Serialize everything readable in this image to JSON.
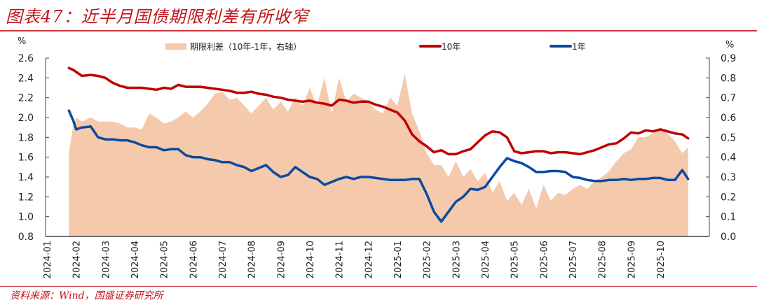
{
  "header": {
    "title": "图表47：近半月国债期限利差有所收窄"
  },
  "footer": {
    "source": "资料来源：Wind，国盛证券研究所"
  },
  "chart_data": {
    "type": "line",
    "title": "图表47：近半月国债期限利差有所收窄",
    "left_axis": {
      "unit": "%",
      "ylim": [
        0.8,
        2.6
      ],
      "ticks": [
        "0.8",
        "1.0",
        "1.2",
        "1.4",
        "1.6",
        "1.8",
        "2.0",
        "2.2",
        "2.4",
        "2.6"
      ]
    },
    "right_axis": {
      "unit": "%",
      "ylim": [
        0.0,
        0.9
      ],
      "ticks": [
        "0.0",
        "0.1",
        "0.2",
        "0.3",
        "0.4",
        "0.5",
        "0.6",
        "0.7",
        "0.8",
        "0.9"
      ]
    },
    "x_ticks": [
      "2024-01",
      "2024-02",
      "2024-03",
      "2024-04",
      "2024-05",
      "2024-06",
      "2024-07",
      "2024-08",
      "2024-09",
      "2024-10",
      "2024-11",
      "2024-12",
      "2025-01",
      "2025-02",
      "2025-03",
      "2025-04",
      "2025-05",
      "2025-06",
      "2025-07",
      "2025-08",
      "2025-09",
      "2025-10"
    ],
    "legend_position": "top",
    "colors": {
      "spread": "#f5c9ab",
      "y10": "#c00000",
      "y1": "#0b4aa0"
    },
    "x": [
      0.75,
      0.9,
      1.0,
      1.2,
      1.5,
      1.75,
      2.0,
      2.25,
      2.5,
      2.75,
      3.0,
      3.25,
      3.5,
      3.75,
      4.0,
      4.25,
      4.5,
      4.75,
      5.0,
      5.25,
      5.5,
      5.75,
      6.0,
      6.25,
      6.5,
      6.75,
      7.0,
      7.25,
      7.5,
      7.75,
      8.0,
      8.25,
      8.5,
      8.75,
      9.0,
      9.25,
      9.5,
      9.75,
      10.0,
      10.25,
      10.5,
      10.75,
      11.0,
      11.25,
      11.5,
      11.75,
      12.0,
      12.25,
      12.5,
      12.75,
      13.0,
      13.25,
      13.5,
      13.75,
      14.0,
      14.25,
      14.5,
      14.75,
      15.0,
      15.25,
      15.5,
      15.75,
      16.0,
      16.25,
      16.5,
      16.75,
      17.0,
      17.25,
      17.5,
      17.75,
      18.0,
      18.25,
      18.5,
      18.75,
      19.0,
      19.25,
      19.5,
      19.75,
      20.0,
      20.25,
      20.5,
      20.75,
      21.0,
      21.25,
      21.5,
      21.75,
      21.95
    ],
    "series": [
      {
        "name": "期限利差（10年-1年，右轴）",
        "axis": "right",
        "kind": "area",
        "values": [
          0.42,
          0.56,
          0.6,
          0.58,
          0.6,
          0.58,
          0.58,
          0.58,
          0.57,
          0.55,
          0.55,
          0.54,
          0.62,
          0.6,
          0.57,
          0.58,
          0.6,
          0.63,
          0.6,
          0.63,
          0.67,
          0.72,
          0.73,
          0.69,
          0.7,
          0.66,
          0.62,
          0.66,
          0.7,
          0.64,
          0.68,
          0.63,
          0.7,
          0.66,
          0.75,
          0.66,
          0.8,
          0.62,
          0.8,
          0.68,
          0.72,
          0.7,
          0.68,
          0.64,
          0.62,
          0.7,
          0.66,
          0.82,
          0.62,
          0.53,
          0.42,
          0.36,
          0.36,
          0.3,
          0.38,
          0.3,
          0.34,
          0.28,
          0.32,
          0.22,
          0.28,
          0.18,
          0.22,
          0.16,
          0.24,
          0.14,
          0.26,
          0.18,
          0.22,
          0.21,
          0.24,
          0.26,
          0.24,
          0.28,
          0.3,
          0.33,
          0.38,
          0.42,
          0.44,
          0.5,
          0.5,
          0.52,
          0.55,
          0.52,
          0.48,
          0.42,
          0.45
        ],
        "legend_label": "期限利差（10年-1年，右轴）"
      },
      {
        "name": "10年",
        "axis": "left",
        "kind": "line",
        "values": [
          2.5,
          2.48,
          2.46,
          2.42,
          2.43,
          2.42,
          2.4,
          2.35,
          2.32,
          2.3,
          2.3,
          2.3,
          2.29,
          2.28,
          2.3,
          2.29,
          2.33,
          2.31,
          2.31,
          2.31,
          2.3,
          2.29,
          2.28,
          2.27,
          2.25,
          2.25,
          2.26,
          2.24,
          2.23,
          2.21,
          2.2,
          2.18,
          2.17,
          2.16,
          2.17,
          2.15,
          2.14,
          2.12,
          2.18,
          2.17,
          2.15,
          2.16,
          2.16,
          2.13,
          2.11,
          2.08,
          2.05,
          1.97,
          1.83,
          1.76,
          1.71,
          1.65,
          1.67,
          1.63,
          1.63,
          1.66,
          1.68,
          1.75,
          1.82,
          1.86,
          1.85,
          1.8,
          1.66,
          1.64,
          1.65,
          1.66,
          1.66,
          1.64,
          1.65,
          1.65,
          1.64,
          1.63,
          1.65,
          1.67,
          1.7,
          1.73,
          1.74,
          1.79,
          1.85,
          1.84,
          1.87,
          1.86,
          1.88,
          1.86,
          1.84,
          1.83,
          1.79
        ],
        "legend_label": "10年"
      },
      {
        "name": "1年",
        "axis": "left",
        "kind": "line",
        "values": [
          2.07,
          1.97,
          1.88,
          1.9,
          1.91,
          1.8,
          1.78,
          1.78,
          1.77,
          1.77,
          1.75,
          1.72,
          1.7,
          1.7,
          1.67,
          1.68,
          1.68,
          1.62,
          1.6,
          1.6,
          1.58,
          1.57,
          1.55,
          1.55,
          1.52,
          1.5,
          1.46,
          1.49,
          1.52,
          1.45,
          1.4,
          1.42,
          1.5,
          1.45,
          1.4,
          1.38,
          1.32,
          1.35,
          1.38,
          1.4,
          1.38,
          1.4,
          1.4,
          1.39,
          1.38,
          1.37,
          1.37,
          1.37,
          1.38,
          1.38,
          1.23,
          1.05,
          0.95,
          1.05,
          1.15,
          1.2,
          1.28,
          1.27,
          1.3,
          1.4,
          1.5,
          1.59,
          1.56,
          1.54,
          1.5,
          1.45,
          1.45,
          1.46,
          1.46,
          1.45,
          1.4,
          1.39,
          1.37,
          1.36,
          1.36,
          1.37,
          1.37,
          1.38,
          1.37,
          1.38,
          1.38,
          1.39,
          1.39,
          1.37,
          1.37,
          1.47,
          1.38
        ],
        "legend_label": "1年"
      }
    ]
  }
}
